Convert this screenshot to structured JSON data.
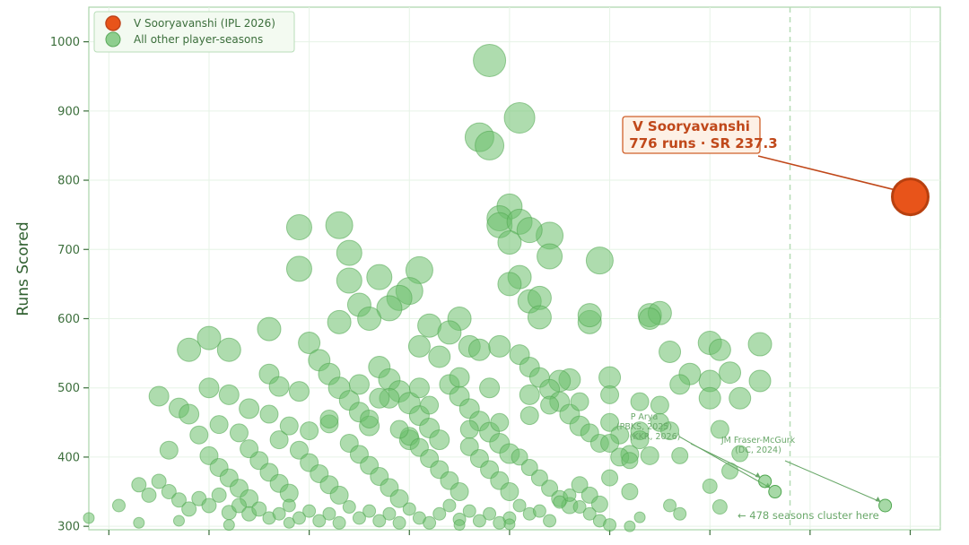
{
  "chart_data": {
    "type": "scatter",
    "title": "",
    "xlabel": "",
    "ylabel": "Runs Scored",
    "ylim": [
      295,
      1050
    ],
    "xlim": [
      88,
      173
    ],
    "yticks": [
      300,
      400,
      500,
      600,
      700,
      800,
      900,
      1000
    ],
    "x_ticks_labeled": false,
    "grid": true,
    "legend_position": "top-left",
    "legend": [
      {
        "label": "V Sooryavanshi (IPL 2026)",
        "color": "#e8541a"
      },
      {
        "label": "All other player-seasons",
        "color": "#6cbf6c"
      }
    ],
    "highlight": {
      "name": "V Sooryavanshi",
      "callout_line1": "V Sooryavanshi",
      "callout_line2": "776 runs · SR 237.3",
      "x": 170,
      "y": 776,
      "color": "#e8541a"
    },
    "threshold_x": 158,
    "annotations": [
      {
        "text_lines": [
          "P Arya",
          "(PBKS, 2025)"
        ],
        "point": [
          156.5,
          350
        ],
        "overlap_with_next": true
      },
      {
        "text_lines": [
          "(KKR, 2026)"
        ],
        "point": [
          155.5,
          365
        ]
      },
      {
        "text_lines": [
          "JM Fraser-McGurk",
          "(DC, 2024)"
        ],
        "point": [
          167.5,
          330
        ]
      }
    ],
    "cluster_note": "← 478 seasons cluster here",
    "series": [
      {
        "label": "All other player-seasons",
        "color": "#6cbf6c",
        "points": [
          [
            128,
            973,
            18
          ],
          [
            131,
            890,
            17
          ],
          [
            127,
            862,
            16
          ],
          [
            128,
            850,
            16
          ],
          [
            130,
            762,
            14
          ],
          [
            129,
            745,
            14
          ],
          [
            129,
            735,
            14
          ],
          [
            131,
            740,
            14
          ],
          [
            130,
            710,
            13
          ],
          [
            132,
            728,
            14
          ],
          [
            134,
            720,
            15
          ],
          [
            134,
            690,
            14
          ],
          [
            109,
            732,
            14
          ],
          [
            109,
            672,
            14
          ],
          [
            113,
            735,
            15
          ],
          [
            114,
            695,
            14
          ],
          [
            114,
            655,
            14
          ],
          [
            131,
            660,
            13
          ],
          [
            130,
            650,
            13
          ],
          [
            132,
            625,
            13
          ],
          [
            133,
            630,
            13
          ],
          [
            133,
            602,
            13
          ],
          [
            139,
            684,
            15
          ],
          [
            138,
            595,
            13
          ],
          [
            138,
            605,
            13
          ],
          [
            144,
            605,
            13
          ],
          [
            145,
            608,
            13
          ],
          [
            144,
            600,
            12
          ],
          [
            150,
            565,
            13
          ],
          [
            146,
            552,
            12
          ],
          [
            147,
            505,
            11
          ],
          [
            150,
            510,
            12
          ],
          [
            150,
            485,
            12
          ],
          [
            136,
            512,
            12
          ],
          [
            135,
            510,
            12
          ],
          [
            132,
            490,
            11
          ],
          [
            140,
            515,
            12
          ],
          [
            121,
            670,
            15
          ],
          [
            120,
            640,
            15
          ],
          [
            119,
            630,
            14
          ],
          [
            117,
            660,
            14
          ],
          [
            118,
            615,
            14
          ],
          [
            115,
            620,
            13
          ],
          [
            113,
            595,
            13
          ],
          [
            116,
            600,
            13
          ],
          [
            122,
            590,
            13
          ],
          [
            125,
            600,
            13
          ],
          [
            124,
            580,
            13
          ],
          [
            126,
            560,
            12
          ],
          [
            123,
            545,
            12
          ],
          [
            121,
            560,
            12
          ],
          [
            127,
            555,
            12
          ],
          [
            129,
            560,
            12
          ],
          [
            106,
            585,
            13
          ],
          [
            102,
            555,
            13
          ],
          [
            98,
            555,
            13
          ],
          [
            100,
            572,
            13
          ],
          [
            95,
            488,
            11
          ],
          [
            97,
            471,
            11
          ],
          [
            96,
            410,
            10
          ],
          [
            98,
            462,
            11
          ],
          [
            99,
            432,
            10
          ],
          [
            100,
            500,
            11
          ],
          [
            102,
            490,
            11
          ],
          [
            104,
            470,
            11
          ],
          [
            106,
            520,
            11
          ],
          [
            107,
            502,
            11
          ],
          [
            109,
            495,
            11
          ],
          [
            110,
            565,
            12
          ],
          [
            111,
            540,
            12
          ],
          [
            112,
            520,
            12
          ],
          [
            113,
            500,
            12
          ],
          [
            114,
            482,
            11
          ],
          [
            115,
            465,
            11
          ],
          [
            116,
            445,
            11
          ],
          [
            117,
            530,
            12
          ],
          [
            118,
            512,
            12
          ],
          [
            119,
            495,
            12
          ],
          [
            120,
            478,
            12
          ],
          [
            121,
            460,
            11
          ],
          [
            122,
            442,
            11
          ],
          [
            123,
            425,
            11
          ],
          [
            124,
            505,
            11
          ],
          [
            125,
            488,
            11
          ],
          [
            126,
            470,
            11
          ],
          [
            127,
            452,
            11
          ],
          [
            128,
            436,
            11
          ],
          [
            129,
            420,
            11
          ],
          [
            130,
            405,
            11
          ],
          [
            131,
            548,
            11
          ],
          [
            132,
            530,
            11
          ],
          [
            133,
            515,
            11
          ],
          [
            134,
            498,
            11
          ],
          [
            135,
            480,
            11
          ],
          [
            136,
            462,
            11
          ],
          [
            137,
            445,
            11
          ],
          [
            138,
            435,
            10
          ],
          [
            139,
            420,
            10
          ],
          [
            140,
            450,
            10
          ],
          [
            141,
            432,
            10
          ],
          [
            142,
            404,
            10
          ],
          [
            143,
            438,
            10
          ],
          [
            144,
            402,
            10
          ],
          [
            100,
            402,
            10
          ],
          [
            101,
            385,
            10
          ],
          [
            102,
            370,
            10
          ],
          [
            103,
            355,
            10
          ],
          [
            104,
            340,
            10
          ],
          [
            105,
            395,
            10
          ],
          [
            106,
            378,
            10
          ],
          [
            107,
            362,
            10
          ],
          [
            108,
            348,
            10
          ],
          [
            109,
            410,
            10
          ],
          [
            110,
            392,
            10
          ],
          [
            111,
            376,
            10
          ],
          [
            112,
            360,
            10
          ],
          [
            113,
            345,
            10
          ],
          [
            114,
            420,
            10
          ],
          [
            115,
            404,
            10
          ],
          [
            116,
            388,
            10
          ],
          [
            117,
            372,
            10
          ],
          [
            118,
            356,
            10
          ],
          [
            119,
            340,
            10
          ],
          [
            120,
            430,
            10
          ],
          [
            121,
            414,
            10
          ],
          [
            122,
            398,
            10
          ],
          [
            123,
            382,
            10
          ],
          [
            124,
            366,
            10
          ],
          [
            125,
            350,
            10
          ],
          [
            126,
            415,
            10
          ],
          [
            127,
            398,
            10
          ],
          [
            128,
            382,
            10
          ],
          [
            129,
            366,
            10
          ],
          [
            130,
            350,
            10
          ],
          [
            131,
            400,
            9
          ],
          [
            132,
            385,
            9
          ],
          [
            133,
            370,
            9
          ],
          [
            134,
            355,
            9
          ],
          [
            135,
            340,
            9
          ],
          [
            136,
            330,
            9
          ],
          [
            137,
            360,
            9
          ],
          [
            138,
            345,
            9
          ],
          [
            139,
            332,
            9
          ],
          [
            140,
            370,
            9
          ],
          [
            142,
            350,
            9
          ],
          [
            93,
            360,
            8
          ],
          [
            94,
            345,
            8
          ],
          [
            95,
            365,
            8
          ],
          [
            96,
            350,
            8
          ],
          [
            97,
            338,
            8
          ],
          [
            98,
            325,
            8
          ],
          [
            99,
            340,
            8
          ],
          [
            100,
            330,
            8
          ],
          [
            101,
            345,
            8
          ],
          [
            102,
            320,
            8
          ],
          [
            103,
            330,
            8
          ],
          [
            104,
            318,
            8
          ],
          [
            105,
            325,
            8
          ],
          [
            106,
            312,
            7
          ],
          [
            107,
            318,
            7
          ],
          [
            108,
            330,
            7
          ],
          [
            109,
            312,
            7
          ],
          [
            110,
            322,
            7
          ],
          [
            111,
            308,
            7
          ],
          [
            112,
            318,
            7
          ],
          [
            113,
            305,
            7
          ],
          [
            114,
            328,
            7
          ],
          [
            115,
            312,
            7
          ],
          [
            116,
            322,
            7
          ],
          [
            117,
            308,
            7
          ],
          [
            118,
            318,
            7
          ],
          [
            119,
            305,
            7
          ],
          [
            120,
            325,
            7
          ],
          [
            121,
            312,
            7
          ],
          [
            122,
            305,
            7
          ],
          [
            123,
            318,
            7
          ],
          [
            124,
            330,
            7
          ],
          [
            125,
            310,
            7
          ],
          [
            126,
            322,
            7
          ],
          [
            127,
            308,
            7
          ],
          [
            128,
            318,
            7
          ],
          [
            129,
            305,
            7
          ],
          [
            130,
            312,
            7
          ],
          [
            131,
            330,
            7
          ],
          [
            132,
            318,
            7
          ],
          [
            133,
            322,
            7
          ],
          [
            134,
            308,
            7
          ],
          [
            135,
            335,
            7
          ],
          [
            136,
            345,
            7
          ],
          [
            137,
            328,
            7
          ],
          [
            138,
            318,
            7
          ],
          [
            139,
            308,
            7
          ],
          [
            140,
            302,
            7
          ],
          [
            91,
            330,
            7
          ],
          [
            88,
            312,
            6
          ],
          [
            93,
            305,
            6
          ],
          [
            97,
            308,
            6
          ],
          [
            102,
            302,
            6
          ],
          [
            108,
            305,
            6
          ],
          [
            125,
            302,
            6
          ],
          [
            130,
            303,
            6
          ],
          [
            115,
            505,
            11
          ],
          [
            118,
            485,
            11
          ],
          [
            121,
            500,
            11
          ],
          [
            125,
            515,
            11
          ],
          [
            128,
            500,
            11
          ],
          [
            104,
            412,
            10
          ],
          [
            107,
            425,
            10
          ],
          [
            110,
            438,
            10
          ],
          [
            112,
            448,
            10
          ],
          [
            116,
            455,
            10
          ],
          [
            119,
            440,
            10
          ],
          [
            122,
            475,
            10
          ],
          [
            126,
            440,
            10
          ],
          [
            129,
            450,
            10
          ],
          [
            132,
            460,
            10
          ],
          [
            134,
            475,
            10
          ],
          [
            137,
            480,
            10
          ],
          [
            140,
            490,
            10
          ],
          [
            143,
            480,
            10
          ],
          [
            145,
            475,
            10
          ],
          [
            148,
            520,
            12
          ],
          [
            152,
            522,
            12
          ],
          [
            151,
            555,
            12
          ],
          [
            153,
            485,
            12
          ],
          [
            155,
            510,
            12
          ],
          [
            155,
            563,
            13
          ],
          [
            143,
            425,
            10
          ],
          [
            145,
            450,
            10
          ],
          [
            141,
            400,
            10
          ],
          [
            140,
            420,
            10
          ],
          [
            142,
            395,
            9
          ],
          [
            146,
            438,
            10
          ],
          [
            147,
            402,
            9
          ],
          [
            151,
            440,
            10
          ],
          [
            153,
            405,
            9
          ],
          [
            152,
            380,
            9
          ],
          [
            150,
            358,
            8
          ],
          [
            151,
            328,
            8
          ],
          [
            147,
            318,
            7
          ],
          [
            146,
            330,
            7
          ],
          [
            143,
            313,
            6
          ],
          [
            142,
            300,
            6
          ],
          [
            120,
            425,
            11
          ],
          [
            117,
            485,
            11
          ],
          [
            112,
            455,
            10
          ],
          [
            108,
            445,
            10
          ],
          [
            106,
            462,
            10
          ],
          [
            103,
            435,
            10
          ],
          [
            101,
            447,
            10
          ]
        ]
      }
    ]
  }
}
